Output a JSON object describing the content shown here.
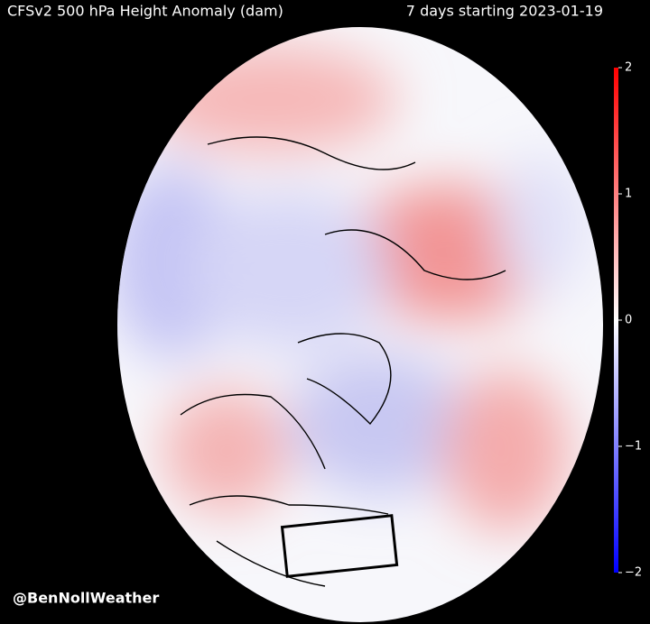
{
  "header": {
    "title": "CFSv2 500 hPa Height Anomaly (dam)",
    "period": "7 days starting 2023-01-19"
  },
  "colorbar": {
    "range": [
      -2,
      2
    ],
    "ticks": [
      2,
      1,
      0,
      {
        "value": -1,
        "label": "−1"
      },
      {
        "value": -2,
        "label": "−2"
      }
    ]
  },
  "credit": "@BenNollWeather"
}
